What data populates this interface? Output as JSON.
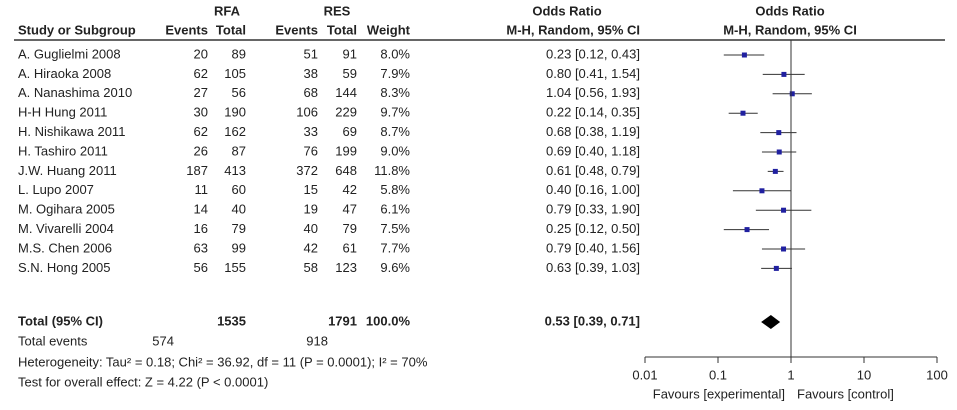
{
  "chart_data": {
    "type": "forest",
    "group_headers": [
      "RFA",
      "RES"
    ],
    "column_headers": [
      "Study or Subgroup",
      "Events",
      "Total",
      "Events",
      "Total",
      "Weight"
    ],
    "or_header": "Odds Ratio",
    "or_subheader": "M-H, Random, 95% CI",
    "plot_header": "Odds Ratio",
    "plot_subheader": "M-H, Random, 95% CI",
    "studies": [
      "A. Guglielmi 2008",
      "A. Hiraoka 2008",
      "A. Nanashima 2010",
      "H-H Hung 2011",
      "H. Nishikawa 2011",
      "H. Tashiro 2011",
      "J.W. Huang 2011",
      "L. Lupo 2007",
      "M. Ogihara 2005",
      "M. Vivarelli 2004",
      "M.S. Chen 2006",
      "S.N. Hong 2005"
    ],
    "rows": [
      [
        20,
        89,
        51,
        91,
        "8.0%"
      ],
      [
        62,
        105,
        38,
        59,
        "7.9%"
      ],
      [
        27,
        56,
        68,
        144,
        "8.3%"
      ],
      [
        30,
        190,
        106,
        229,
        "9.7%"
      ],
      [
        62,
        162,
        33,
        69,
        "8.7%"
      ],
      [
        26,
        87,
        76,
        199,
        "9.0%"
      ],
      [
        187,
        413,
        372,
        648,
        "11.8%"
      ],
      [
        11,
        60,
        15,
        42,
        "5.8%"
      ],
      [
        14,
        40,
        19,
        47,
        "6.1%"
      ],
      [
        16,
        79,
        40,
        79,
        "7.5%"
      ],
      [
        63,
        99,
        42,
        61,
        "7.7%"
      ],
      [
        56,
        155,
        58,
        123,
        "9.6%"
      ]
    ],
    "values": [
      0.23,
      0.8,
      1.04,
      0.22,
      0.68,
      0.69,
      0.61,
      0.4,
      0.79,
      0.25,
      0.79,
      0.63
    ],
    "ci_low": [
      0.12,
      0.41,
      0.56,
      0.14,
      0.38,
      0.4,
      0.48,
      0.16,
      0.33,
      0.12,
      0.4,
      0.39
    ],
    "ci_high": [
      0.43,
      1.54,
      1.93,
      0.35,
      1.19,
      1.18,
      0.79,
      1.0,
      1.9,
      0.5,
      1.56,
      1.03
    ],
    "value_labels": [
      "0.23 [0.12, 0.43]",
      "0.80 [0.41, 1.54]",
      "1.04 [0.56, 1.93]",
      "0.22 [0.14, 0.35]",
      "0.68 [0.38, 1.19]",
      "0.69 [0.40, 1.18]",
      "0.61 [0.48, 0.79]",
      "0.40 [0.16, 1.00]",
      "0.79 [0.33, 1.90]",
      "0.25 [0.12, 0.50]",
      "0.79 [0.40, 1.56]",
      "0.63 [0.39, 1.03]"
    ],
    "total": {
      "label": "Total (95% CI)",
      "rfa_total": 1535,
      "res_total": 1791,
      "weight": "100.0%",
      "value": 0.53,
      "ci_low": 0.39,
      "ci_high": 0.71,
      "value_label": "0.53 [0.39, 0.71]"
    },
    "total_events": {
      "label": "Total events",
      "rfa": 574,
      "res": 918
    },
    "heterogeneity": "Heterogeneity: Tau² = 0.18; Chi² = 36.92, df = 11 (P = 0.0001); I² = 70%",
    "overall_effect": "Test for overall effect: Z = 4.22 (P < 0.0001)",
    "log_scale": true,
    "xlim": [
      0.01,
      100
    ],
    "xticks": [
      0.01,
      0.1,
      1,
      10,
      100
    ],
    "xlabel_left": "Favours [experimental]",
    "xlabel_right": "Favours [control]",
    "color": "#2020a0"
  }
}
